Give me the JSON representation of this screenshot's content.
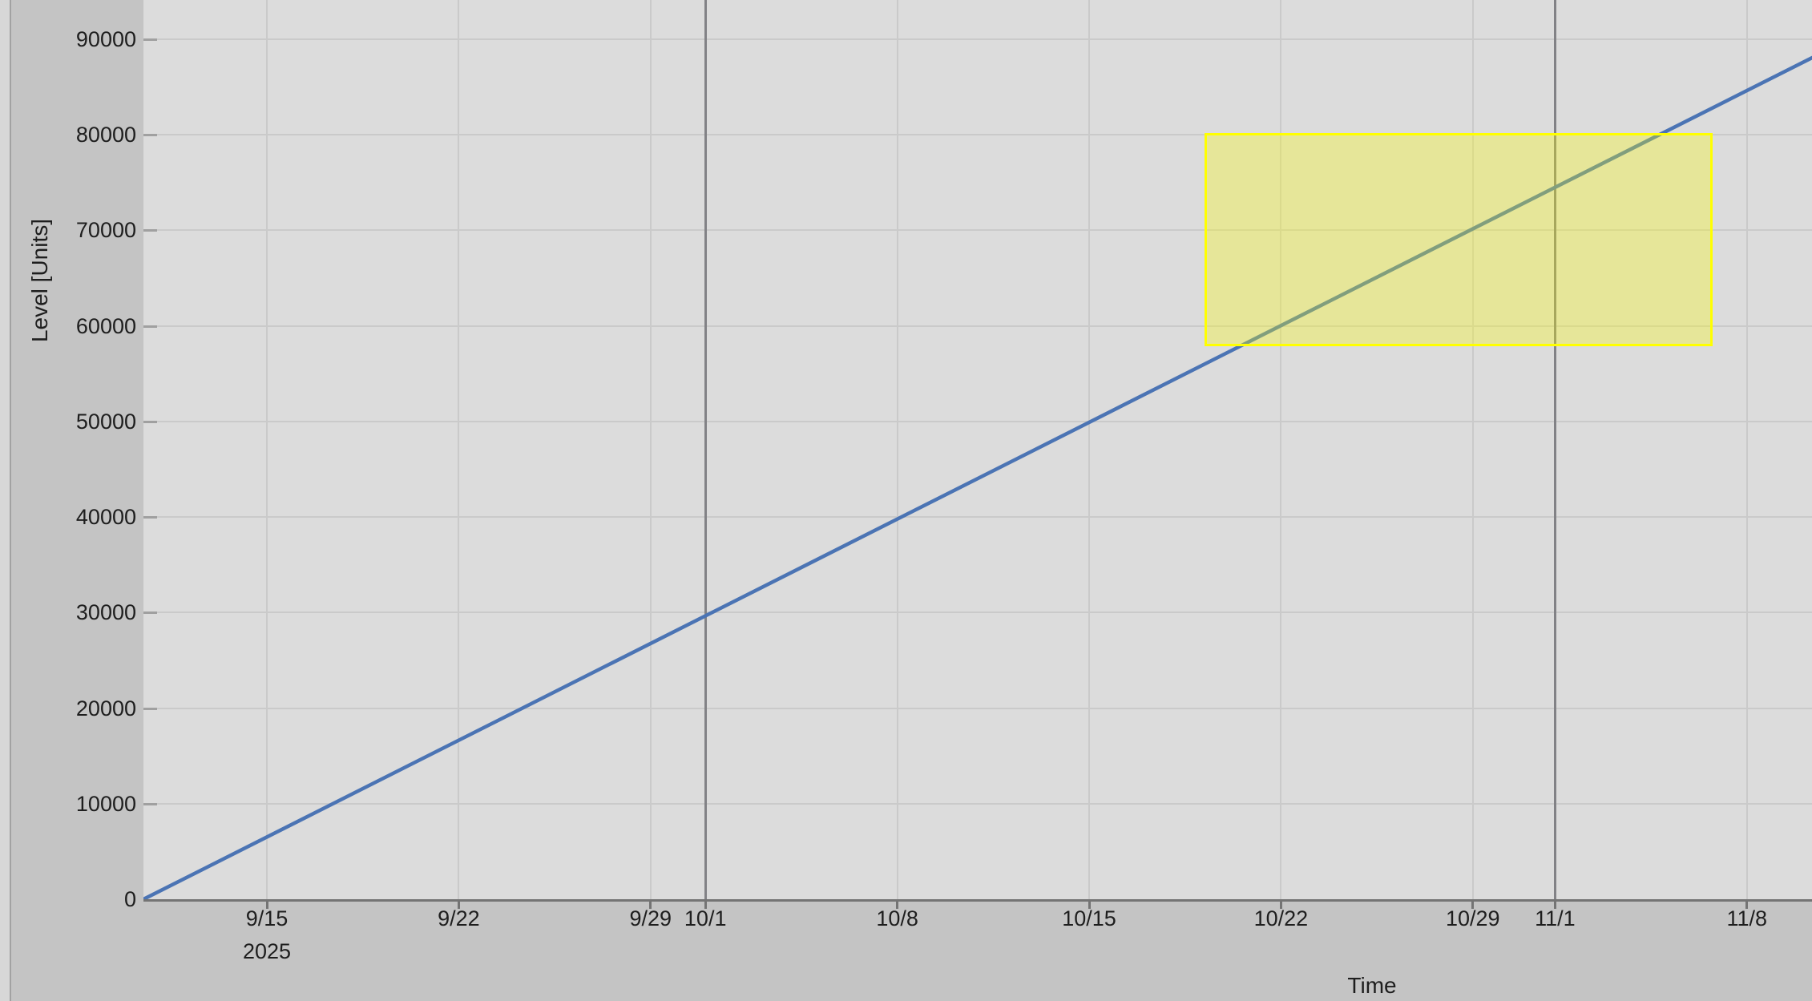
{
  "window": {
    "background_color": "#c4c4c4",
    "plot_background_color": "#dcdcdc",
    "gridline_color": "#cacaca",
    "month_gridline_color": "#828286",
    "axis_color": "#747474",
    "left_strip_color": "#d7d7d7"
  },
  "chart_data": {
    "type": "line",
    "title": "",
    "xlabel": "Time",
    "ylabel": "Level [Units]",
    "x_year_label": "2025",
    "x_axis_unit": "date (M/D), year 2025",
    "grid": true,
    "legend": "none",
    "xlim_days_from_9_15": [
      -4.5,
      56.4
    ],
    "ylim": [
      0,
      94100
    ],
    "y_ticks": [
      0,
      10000,
      20000,
      30000,
      40000,
      50000,
      60000,
      70000,
      80000,
      90000
    ],
    "x_ticks": [
      {
        "label": "9/15",
        "day": 0,
        "emphasized": false
      },
      {
        "label": "9/22",
        "day": 7,
        "emphasized": false
      },
      {
        "label": "9/29",
        "day": 14,
        "emphasized": false
      },
      {
        "label": "10/1",
        "day": 16,
        "emphasized": true
      },
      {
        "label": "10/8",
        "day": 23,
        "emphasized": false
      },
      {
        "label": "10/15",
        "day": 30,
        "emphasized": false
      },
      {
        "label": "10/22",
        "day": 37,
        "emphasized": false
      },
      {
        "label": "10/29",
        "day": 44,
        "emphasized": false
      },
      {
        "label": "11/1",
        "day": 47,
        "emphasized": true
      },
      {
        "label": "11/8",
        "day": 54,
        "emphasized": false
      }
    ],
    "series": [
      {
        "name": "Level",
        "color": "#4b74b4",
        "stroke_width": 4.5,
        "rate_units_per_day": 1446,
        "points": [
          {
            "day": -4.5,
            "value": 0
          },
          {
            "day": 56.4,
            "value": 88100
          }
        ],
        "description": "straight line: 0 units at ~9/10 rising linearly to ~88000 units at right edge (~11/10)"
      }
    ],
    "highlight_region": {
      "day_start": 34.2,
      "day_end": 52.75,
      "date_start_approx": "10/19",
      "date_end_approx": "11/6",
      "value_low": 57900,
      "value_high": 80200,
      "fill": "rgba(255,255,0,0.30)",
      "border_color": "#ffff00"
    }
  }
}
